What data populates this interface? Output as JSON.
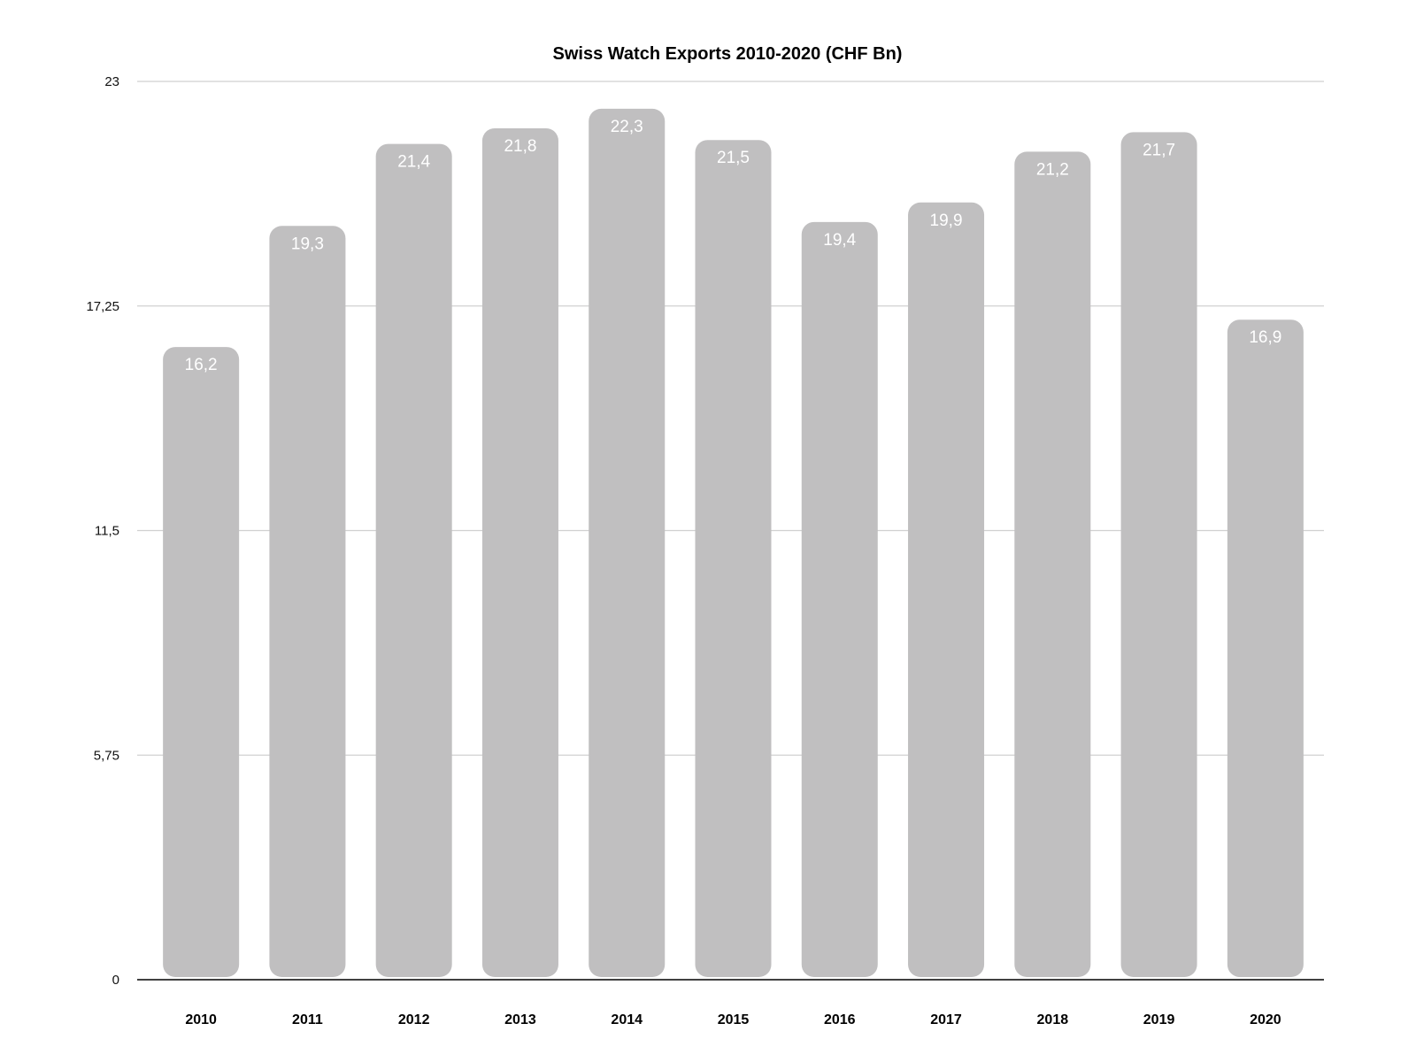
{
  "chart_data": {
    "type": "bar",
    "title": "Swiss Watch Exports 2010-2020 (CHF Bn)",
    "xlabel": "",
    "ylabel": "",
    "categories": [
      "2010",
      "2011",
      "2012",
      "2013",
      "2014",
      "2015",
      "2016",
      "2017",
      "2018",
      "2019",
      "2020"
    ],
    "values": [
      16.2,
      19.3,
      21.4,
      21.8,
      22.3,
      21.5,
      19.4,
      19.9,
      21.2,
      21.7,
      16.9
    ],
    "data_labels": [
      "16,2",
      "19,3",
      "21,4",
      "21,8",
      "22,3",
      "21,5",
      "19,4",
      "19,9",
      "21,2",
      "21,7",
      "16,9"
    ],
    "ylim": [
      0,
      23
    ],
    "y_ticks": [
      0,
      5.75,
      11.5,
      17.25,
      23
    ],
    "y_tick_labels": [
      "0",
      "5,75",
      "11,5",
      "17,25",
      "23"
    ],
    "grid": true,
    "legend": "none",
    "colors": {
      "bar": "#c0bfc0",
      "grid": "#d0d0d0",
      "axis": "#000000",
      "data_label": "#ffffff"
    }
  }
}
